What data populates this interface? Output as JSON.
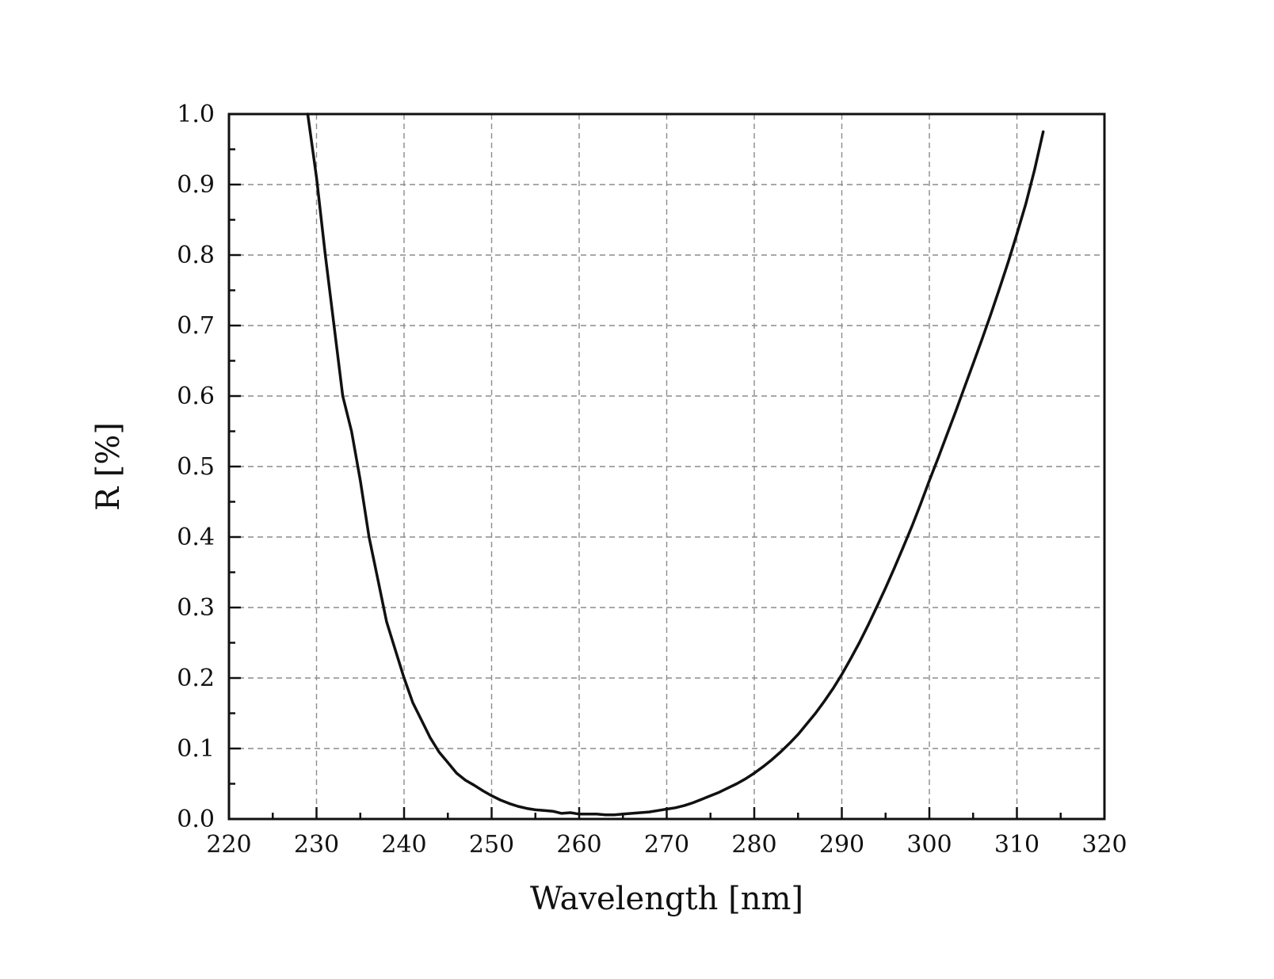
{
  "chart_data": {
    "type": "line",
    "title": "",
    "xlabel": "Wavelength [nm]",
    "ylabel": "R [%]",
    "xlim": [
      220,
      320
    ],
    "ylim": [
      0.0,
      1.0
    ],
    "x_ticks": [
      "220",
      "230",
      "240",
      "250",
      "260",
      "270",
      "280",
      "290",
      "300",
      "310",
      "320"
    ],
    "y_ticks": [
      "0.0",
      "0.1",
      "0.2",
      "0.3",
      "0.4",
      "0.5",
      "0.6",
      "0.7",
      "0.8",
      "0.9",
      "1.0"
    ],
    "grid": true,
    "line_color": "#111111",
    "grid_color": "#8c8c8c",
    "series": [
      {
        "x": [
          229.0,
          230.0,
          231.0,
          232.0,
          233.0,
          234.0,
          235.0,
          236.0,
          237.0,
          238.0,
          239.0,
          240.0,
          241.0,
          242.0,
          243.0,
          244.0,
          245.0,
          246.0,
          247.0,
          248.0,
          249.0,
          250.0,
          251.0,
          252.0,
          253.0,
          254.0,
          255.0,
          256.0,
          257.0,
          258.0,
          259.0,
          260.0,
          261.0,
          262.0,
          263.0,
          264.0,
          265.0,
          266.0,
          267.0,
          268.0,
          269.0,
          270.0,
          271.0,
          272.0,
          273.0,
          274.0,
          275.0,
          276.0,
          277.0,
          278.0,
          279.0,
          280.0,
          281.0,
          282.0,
          283.0,
          284.0,
          285.0,
          286.0,
          287.0,
          288.0,
          289.0,
          290.0,
          291.0,
          292.0,
          293.0,
          294.0,
          295.0,
          296.0,
          297.0,
          298.0,
          299.0,
          300.0,
          301.0,
          302.0,
          303.0,
          304.0,
          305.0,
          306.0,
          307.0,
          308.0,
          309.0,
          310.0,
          311.0,
          312.0,
          313.0
        ],
        "y": [
          1.0,
          0.91,
          0.8,
          0.7,
          0.6,
          0.55,
          0.48,
          0.4,
          0.34,
          0.28,
          0.24,
          0.2,
          0.165,
          0.14,
          0.115,
          0.095,
          0.08,
          0.065,
          0.055,
          0.048,
          0.04,
          0.033,
          0.027,
          0.022,
          0.018,
          0.015,
          0.013,
          0.012,
          0.011,
          0.008,
          0.009,
          0.007,
          0.007,
          0.007,
          0.006,
          0.006,
          0.007,
          0.008,
          0.009,
          0.01,
          0.012,
          0.014,
          0.016,
          0.019,
          0.023,
          0.028,
          0.033,
          0.038,
          0.044,
          0.05,
          0.057,
          0.065,
          0.074,
          0.084,
          0.095,
          0.107,
          0.12,
          0.135,
          0.15,
          0.167,
          0.185,
          0.205,
          0.227,
          0.25,
          0.275,
          0.301,
          0.328,
          0.356,
          0.385,
          0.415,
          0.447,
          0.48,
          0.512,
          0.545,
          0.578,
          0.612,
          0.646,
          0.68,
          0.715,
          0.752,
          0.79,
          0.83,
          0.872,
          0.92,
          0.975
        ]
      }
    ]
  }
}
